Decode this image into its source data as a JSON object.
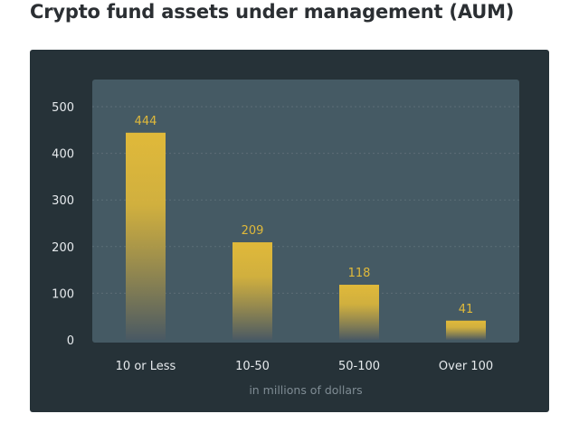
{
  "title": "Crypto fund assets under management (AUM)",
  "chart_data": {
    "type": "bar",
    "categories": [
      "10 or Less",
      "10-50",
      "50-100",
      "Over 100"
    ],
    "values": [
      444,
      209,
      118,
      41
    ],
    "data_labels": [
      "444",
      "209",
      "118",
      "41"
    ],
    "xlabel": "in millions of dollars",
    "ylabel": "",
    "ylim": [
      0,
      500
    ],
    "yticks": [
      0,
      100,
      200,
      300,
      400,
      500
    ],
    "grid": true
  },
  "colors": {
    "card_bg": "#263238",
    "plot_bg": "#455a64",
    "bar_top": "#e0b93a",
    "bar_bottom": "#4a5963",
    "value_label": "#e0b93a",
    "tick_label": "#e6eaed",
    "axis_title": "#7f8c94",
    "gridline": "#5d6e77"
  }
}
